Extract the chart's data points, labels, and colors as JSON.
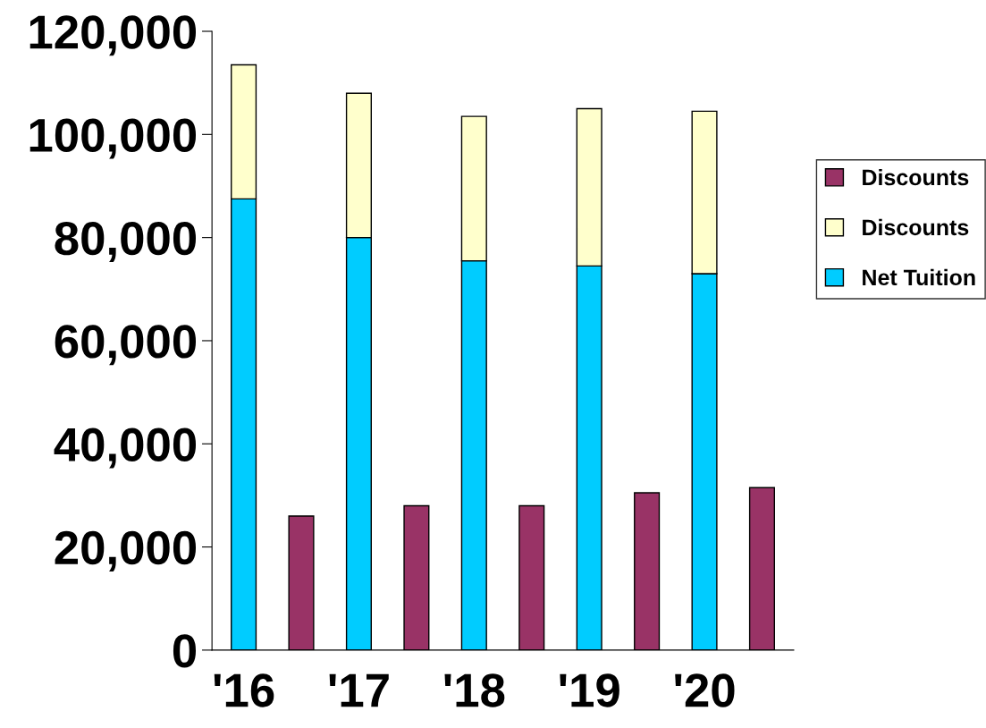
{
  "chart_data": {
    "type": "bar",
    "stacked": true,
    "categories": [
      "'16",
      null,
      "'17",
      null,
      "'18",
      null,
      "'19",
      null,
      "'20",
      null
    ],
    "series": [
      {
        "name": "Net Tuition",
        "color": "#00ccff",
        "values": [
          87500,
          null,
          80000,
          null,
          75500,
          null,
          74500,
          null,
          73000,
          null
        ]
      },
      {
        "name": "Discounts",
        "color": "#ffffcc",
        "values": [
          26000,
          null,
          28000,
          null,
          28000,
          null,
          30500,
          null,
          31500,
          null
        ]
      },
      {
        "name": "Discounts",
        "color": "#993366",
        "values": [
          null,
          26000,
          null,
          28000,
          null,
          28000,
          null,
          30500,
          null,
          31500
        ]
      }
    ],
    "ylim": [
      0,
      120000
    ],
    "yticks": [
      {
        "value": 0,
        "label": "0"
      },
      {
        "value": 20000,
        "label": "20,000"
      },
      {
        "value": 40000,
        "label": "40,000"
      },
      {
        "value": 60000,
        "label": "60,000"
      },
      {
        "value": 80000,
        "label": "80,000"
      },
      {
        "value": 100000,
        "label": "100,000"
      },
      {
        "value": 120000,
        "label": "120,000"
      }
    ],
    "grid": false,
    "legend": "right"
  }
}
